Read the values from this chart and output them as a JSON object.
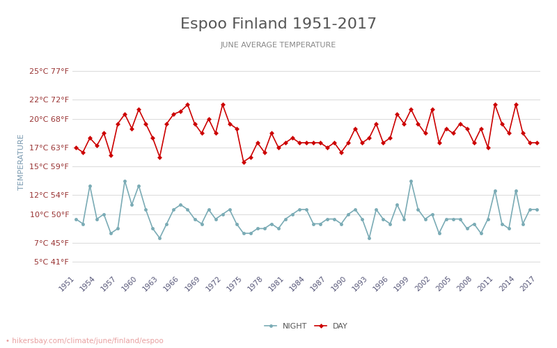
{
  "title": "Espoo Finland 1951-2017",
  "subtitle": "JUNE AVERAGE TEMPERATURE",
  "ylabel": "TEMPERATURE",
  "watermark": "hikersbay.com/climate/june/finland/espoo",
  "years": [
    1951,
    1952,
    1953,
    1954,
    1955,
    1956,
    1957,
    1958,
    1959,
    1960,
    1961,
    1962,
    1963,
    1964,
    1965,
    1966,
    1967,
    1968,
    1969,
    1970,
    1971,
    1972,
    1973,
    1974,
    1975,
    1976,
    1977,
    1978,
    1979,
    1980,
    1981,
    1982,
    1983,
    1984,
    1985,
    1986,
    1987,
    1988,
    1989,
    1990,
    1991,
    1992,
    1993,
    1994,
    1995,
    1996,
    1997,
    1998,
    1999,
    2000,
    2001,
    2002,
    2003,
    2004,
    2005,
    2006,
    2007,
    2008,
    2009,
    2010,
    2011,
    2012,
    2013,
    2014,
    2015,
    2016,
    2017
  ],
  "day_temps": [
    17.0,
    16.5,
    18.0,
    17.2,
    18.5,
    16.2,
    19.5,
    20.5,
    19.0,
    21.0,
    19.5,
    18.0,
    16.0,
    19.5,
    20.5,
    20.8,
    21.5,
    19.5,
    18.5,
    20.0,
    18.5,
    21.5,
    19.5,
    19.0,
    15.5,
    16.0,
    17.5,
    16.5,
    18.5,
    17.0,
    17.5,
    18.0,
    17.5,
    17.5,
    17.5,
    17.5,
    17.0,
    17.5,
    16.5,
    17.5,
    19.0,
    17.5,
    18.0,
    19.5,
    17.5,
    18.0,
    20.5,
    19.5,
    21.0,
    19.5,
    18.5,
    21.0,
    17.5,
    19.0,
    18.5,
    19.5,
    19.0,
    17.5,
    19.0,
    17.0,
    21.5,
    19.5,
    18.5,
    21.5,
    18.5,
    17.5,
    17.5
  ],
  "night_temps": [
    9.5,
    9.0,
    13.0,
    9.5,
    10.0,
    8.0,
    8.5,
    13.5,
    11.0,
    13.0,
    10.5,
    8.5,
    7.5,
    9.0,
    10.5,
    11.0,
    10.5,
    9.5,
    9.0,
    10.5,
    9.5,
    10.0,
    10.5,
    9.0,
    8.0,
    8.0,
    8.5,
    8.5,
    9.0,
    8.5,
    9.5,
    10.0,
    10.5,
    10.5,
    9.0,
    9.0,
    9.5,
    9.5,
    9.0,
    10.0,
    10.5,
    9.5,
    7.5,
    10.5,
    9.5,
    9.0,
    11.0,
    9.5,
    13.5,
    10.5,
    9.5,
    10.0,
    8.0,
    9.5,
    9.5,
    9.5,
    8.5,
    9.0,
    8.0,
    9.5,
    12.5,
    9.0,
    8.5,
    12.5,
    9.0,
    10.5,
    10.5
  ],
  "yticks_c": [
    5,
    7,
    10,
    12,
    15,
    17,
    20,
    22,
    25
  ],
  "yticks_f": [
    41,
    45,
    50,
    54,
    59,
    63,
    68,
    72,
    77
  ],
  "xlim_start": 1951,
  "xlim_end": 2017,
  "ylim_min": 4,
  "ylim_max": 27,
  "day_color": "#cc0000",
  "night_color": "#7aabb5",
  "title_color": "#555555",
  "subtitle_color": "#888888",
  "ylabel_color": "#7a9ab0",
  "tick_color": "#993333",
  "bg_color": "#ffffff",
  "grid_color": "#dddddd",
  "watermark_color": "#e8a0a0"
}
